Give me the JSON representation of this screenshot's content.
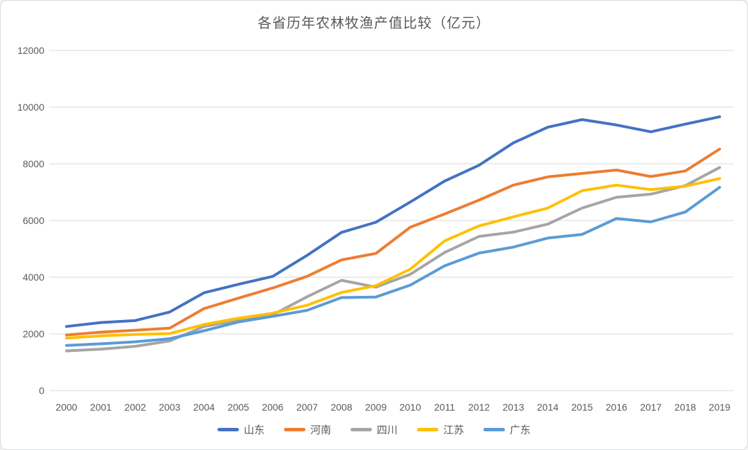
{
  "chart_data": {
    "type": "line",
    "title": "各省历年农林牧渔产值比较（亿元）",
    "xlabel": "",
    "ylabel": "",
    "categories": [
      "2000",
      "2001",
      "2002",
      "2003",
      "2004",
      "2005",
      "2006",
      "2007",
      "2008",
      "2009",
      "2010",
      "2011",
      "2012",
      "2013",
      "2014",
      "2015",
      "2016",
      "2017",
      "2018",
      "2019"
    ],
    "y_ticks": [
      0,
      2000,
      4000,
      6000,
      8000,
      10000,
      12000
    ],
    "ylim": [
      0,
      12000
    ],
    "grid": "horizontal",
    "legend_position": "bottom",
    "series": [
      {
        "id": "shandong",
        "name": "山东",
        "color": "#4472C4",
        "values": [
          2260,
          2400,
          2470,
          2770,
          3450,
          3750,
          4030,
          4770,
          5580,
          5940,
          6650,
          7390,
          7950,
          8740,
          9290,
          9560,
          9370,
          9130,
          9400,
          9660
        ]
      },
      {
        "id": "henan",
        "name": "河南",
        "color": "#ED7D31",
        "values": [
          1960,
          2060,
          2130,
          2200,
          2890,
          3260,
          3620,
          4030,
          4610,
          4840,
          5760,
          6230,
          6720,
          7250,
          7540,
          7660,
          7780,
          7550,
          7750,
          8520
        ]
      },
      {
        "id": "sichuan",
        "name": "四川",
        "color": "#A5A5A5",
        "values": [
          1400,
          1460,
          1560,
          1750,
          2260,
          2480,
          2670,
          3310,
          3890,
          3650,
          4100,
          4870,
          5440,
          5590,
          5870,
          6440,
          6820,
          6930,
          7230,
          7870
        ]
      },
      {
        "id": "jiangsu",
        "name": "江苏",
        "color": "#FFC000",
        "values": [
          1850,
          1930,
          1980,
          2010,
          2330,
          2550,
          2730,
          3010,
          3460,
          3700,
          4280,
          5280,
          5810,
          6130,
          6440,
          7050,
          7250,
          7090,
          7210,
          7480
        ]
      },
      {
        "id": "guangdong",
        "name": "广东",
        "color": "#5B9BD5",
        "values": [
          1590,
          1650,
          1720,
          1830,
          2110,
          2420,
          2620,
          2830,
          3280,
          3300,
          3720,
          4400,
          4850,
          5060,
          5380,
          5510,
          6070,
          5950,
          6300,
          7170
        ]
      }
    ],
    "colors": {
      "gridline": "#D9D9D9",
      "axis_text": "#595959",
      "title_text": "#595959",
      "background": "#FFFFFF"
    }
  }
}
